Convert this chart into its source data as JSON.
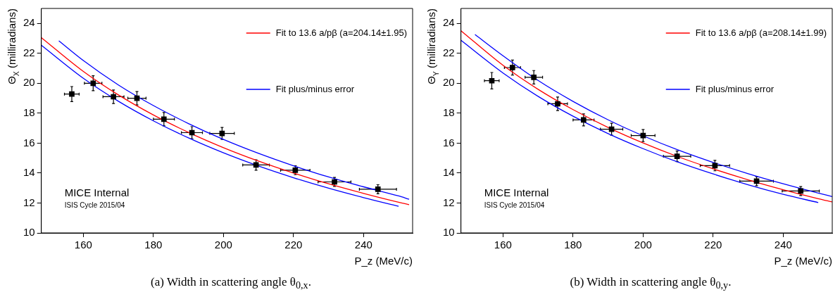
{
  "chart_data": [
    {
      "type": "scatter",
      "title": "(a) Width in scattering angle θ$_{0,x}$.",
      "xlabel": "P_z (MeV/c)",
      "ylabel": "Θ$_{X}$ (milliradians)",
      "xlim": [
        148,
        254
      ],
      "ylim": [
        10,
        25
      ],
      "xticks": [
        160,
        180,
        200,
        220,
        240
      ],
      "yticks": [
        10,
        12,
        14,
        16,
        18,
        20,
        22,
        24
      ],
      "grid": false,
      "legend": "top right",
      "annotations": [
        "MICE Internal",
        "ISIS Cycle 2015/04"
      ],
      "series": [
        {
          "type": "scatter",
          "color": "#000000",
          "marker": "square",
          "x": [
            156.7,
            162.8,
            168.6,
            175.3,
            183,
            191,
            199.6,
            209.3,
            220.5,
            231.7,
            244.1
          ],
          "values": [
            19.28,
            20.0,
            19.1,
            19.0,
            17.6,
            16.7,
            16.65,
            14.54,
            14.19,
            13.41,
            12.92
          ],
          "errors": [
            0.5,
            0.5,
            0.45,
            0.45,
            0.45,
            0.4,
            0.4,
            0.35,
            0.3,
            0.3,
            0.3
          ],
          "xerrors": [
            2.1,
            2.5,
            3,
            2.6,
            3,
            3,
            3.5,
            3.8,
            4.2,
            4.7,
            5.3
          ]
        },
        {
          "type": "line",
          "name": "Fit to 13.6 a/pβ (a=204.14±1.95)",
          "color": "#ff0000",
          "marker": "none",
          "x": [
            148,
            160,
            170,
            180,
            190,
            200,
            210,
            220,
            230,
            240,
            250,
            253
          ],
          "values": [
            23.05,
            20.79,
            19.22,
            17.88,
            16.72,
            15.7,
            14.8,
            14.0,
            13.28,
            12.64,
            12.05,
            11.89
          ]
        },
        {
          "type": "line",
          "name": "Fit plus/minus error",
          "color": "#0000ff",
          "marker": "none",
          "x": [
            153,
            160,
            170,
            180,
            190,
            200,
            210,
            220,
            230,
            240,
            250,
            253
          ],
          "values": [
            22.84,
            21.52,
            19.89,
            18.51,
            17.31,
            16.25,
            15.32,
            14.49,
            13.74,
            13.08,
            12.47,
            12.25
          ]
        },
        {
          "type": "line",
          "color": "#0000ff",
          "marker": "none",
          "x": [
            148,
            160,
            170,
            180,
            190,
            200,
            210,
            220,
            230,
            240,
            250
          ],
          "values": [
            22.54,
            20.33,
            18.8,
            17.49,
            16.35,
            15.35,
            14.47,
            13.69,
            12.99,
            12.36,
            11.78
          ]
        }
      ]
    },
    {
      "type": "scatter",
      "title": "(b) Width in scattering angle θ$_{0,y}$.",
      "xlabel": "P_z (MeV/c)",
      "ylabel": "Θ$_{Y}$ (milliradians)",
      "xlim": [
        148,
        254
      ],
      "ylim": [
        10,
        25
      ],
      "xticks": [
        160,
        180,
        200,
        220,
        240
      ],
      "yticks": [
        10,
        12,
        14,
        16,
        18,
        20,
        22,
        24
      ],
      "grid": false,
      "legend": "top right",
      "annotations": [
        "MICE Internal",
        "ISIS Cycle 2015/04"
      ],
      "series": [
        {
          "type": "scatter",
          "color": "#000000",
          "marker": "square",
          "x": [
            156.8,
            162.7,
            168.8,
            175.6,
            183,
            191,
            200,
            209.7,
            220.5,
            232.4,
            245
          ],
          "values": [
            20.17,
            21.05,
            20.4,
            18.63,
            17.55,
            16.93,
            16.51,
            15.12,
            14.5,
            13.46,
            12.8
          ],
          "errors": [
            0.55,
            0.5,
            0.45,
            0.45,
            0.4,
            0.4,
            0.4,
            0.35,
            0.35,
            0.3,
            0.3
          ],
          "xerrors": [
            2.1,
            2.3,
            2.5,
            2.8,
            3,
            3.2,
            3.4,
            3.9,
            4.2,
            4.8,
            5.3
          ]
        },
        {
          "type": "line",
          "name": "Fit to 13.6 a/pβ (a=208.14±1.99)",
          "color": "#ff0000",
          "marker": "none",
          "x": [
            148,
            160,
            170,
            180,
            190,
            200,
            210,
            220,
            230,
            240,
            250,
            254
          ],
          "values": [
            23.51,
            21.2,
            19.6,
            18.24,
            17.05,
            16.01,
            15.09,
            14.28,
            13.55,
            12.89,
            12.29,
            12.07
          ]
        },
        {
          "type": "line",
          "name": "Fit plus/minus error",
          "color": "#0000ff",
          "marker": "none",
          "x": [
            152,
            160,
            170,
            180,
            190,
            200,
            210,
            220,
            230,
            240,
            250,
            254
          ],
          "values": [
            23.26,
            21.84,
            20.19,
            18.79,
            17.56,
            16.49,
            15.54,
            14.71,
            13.96,
            13.28,
            12.66,
            12.43
          ]
        },
        {
          "type": "line",
          "color": "#0000ff",
          "marker": "none",
          "x": [
            148,
            160,
            170,
            180,
            190,
            200,
            210,
            220,
            230,
            240,
            250
          ],
          "values": [
            22.87,
            20.69,
            19.13,
            17.8,
            16.64,
            15.63,
            14.73,
            13.94,
            13.22,
            12.58,
            12.03
          ]
        }
      ]
    }
  ]
}
